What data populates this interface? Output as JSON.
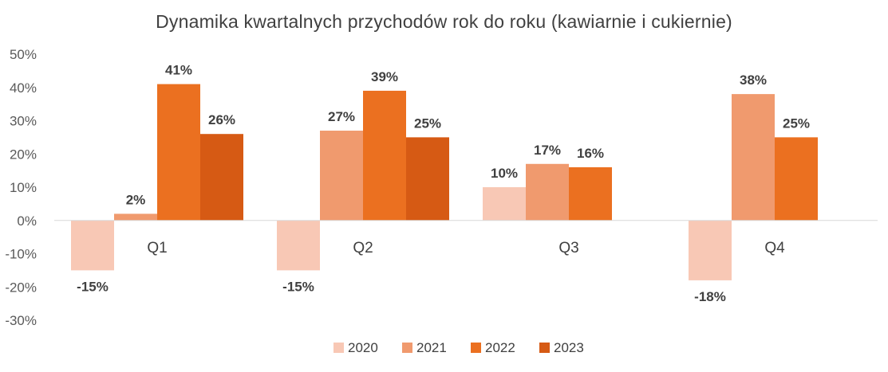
{
  "chart_data": {
    "type": "bar",
    "title": "Dynamika kwartalnych przychodów rok do roku (kawiarnie i cukiernie)",
    "categories": [
      "Q1",
      "Q2",
      "Q3",
      "Q4"
    ],
    "ylim": [
      -30,
      50
    ],
    "yticks": [
      50,
      40,
      30,
      20,
      10,
      0,
      -10,
      -20,
      -30
    ],
    "ytick_labels": [
      "50%",
      "40%",
      "30%",
      "20%",
      "10%",
      "0%",
      "-10%",
      "-20%",
      "-30%"
    ],
    "grid": false,
    "legend_position": "bottom",
    "series": [
      {
        "name": "2020",
        "color": "#F8C8B5",
        "values": [
          -15,
          -15,
          10,
          -18
        ]
      },
      {
        "name": "2021",
        "color": "#F09A6E",
        "values": [
          2,
          27,
          17,
          38
        ]
      },
      {
        "name": "2022",
        "color": "#EB7020",
        "values": [
          41,
          39,
          16,
          25
        ]
      },
      {
        "name": "2023",
        "color": "#D65A14",
        "values": [
          26,
          25,
          null,
          null
        ]
      }
    ]
  }
}
